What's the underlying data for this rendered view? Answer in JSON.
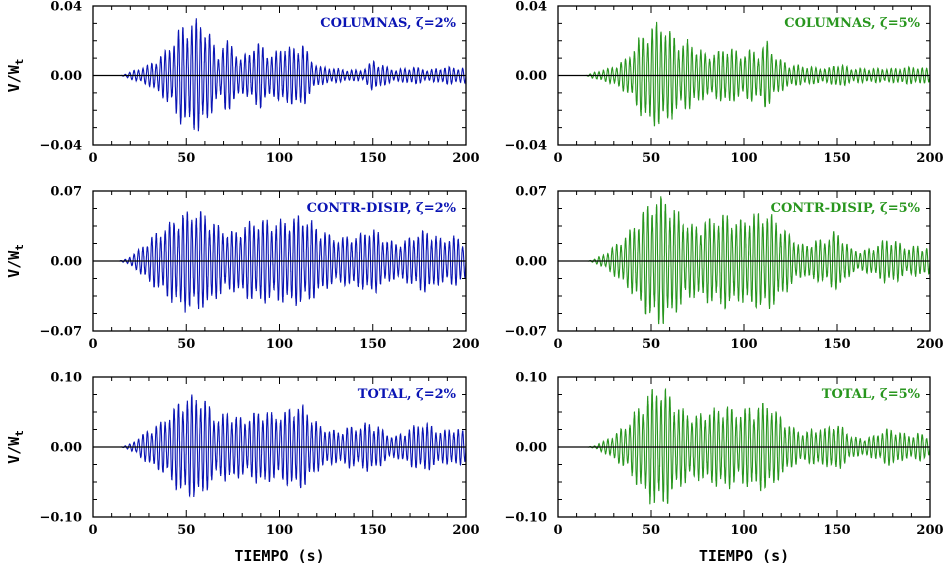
{
  "chart_data": [
    {
      "type": "line",
      "panel": "row1-left",
      "ylabel": "V/W",
      "ylabel_sub": "t",
      "xlabel": "",
      "legend": "COLUMNAS, ζ=2%",
      "color": "#0a14b4",
      "xlim": [
        0,
        200
      ],
      "ylim": [
        -0.04,
        0.04
      ],
      "xticks": [
        0,
        50,
        100,
        150,
        200
      ],
      "yticks": [
        -0.04,
        0.0,
        0.04
      ],
      "ytick_labels": [
        "−0.04",
        "0.00",
        "0.04"
      ],
      "peak": 0.032,
      "freq": 0.42,
      "envelope": [
        [
          0,
          0
        ],
        [
          15,
          0
        ],
        [
          20,
          0.002
        ],
        [
          30,
          0.006
        ],
        [
          38,
          0.013
        ],
        [
          42,
          0.018
        ],
        [
          47,
          0.028
        ],
        [
          52,
          0.03
        ],
        [
          57,
          0.032
        ],
        [
          62,
          0.026
        ],
        [
          67,
          0.012
        ],
        [
          71,
          0.02
        ],
        [
          75,
          0.019
        ],
        [
          79,
          0.009
        ],
        [
          84,
          0.015
        ],
        [
          90,
          0.019
        ],
        [
          96,
          0.011
        ],
        [
          101,
          0.017
        ],
        [
          108,
          0.016
        ],
        [
          112,
          0.02
        ],
        [
          117,
          0.009
        ],
        [
          122,
          0.005
        ],
        [
          130,
          0.004
        ],
        [
          138,
          0.003
        ],
        [
          145,
          0.003
        ],
        [
          150,
          0.009
        ],
        [
          155,
          0.006
        ],
        [
          162,
          0.003
        ],
        [
          172,
          0.005
        ],
        [
          180,
          0.003
        ],
        [
          190,
          0.005
        ],
        [
          200,
          0.004
        ]
      ]
    },
    {
      "type": "line",
      "panel": "row1-right",
      "ylabel": "",
      "xlabel": "",
      "legend": "COLUMNAS, ζ=5%",
      "color": "#28961e",
      "xlim": [
        0,
        200
      ],
      "ylim": [
        -0.04,
        0.04
      ],
      "xticks": [
        0,
        50,
        100,
        150,
        200
      ],
      "yticks": [
        -0.04,
        0.0,
        0.04
      ],
      "ytick_labels": [
        "−0.04",
        "0.00",
        "0.04"
      ],
      "peak": 0.03,
      "freq": 0.42,
      "envelope": [
        [
          0,
          0
        ],
        [
          15,
          0
        ],
        [
          20,
          0.002
        ],
        [
          30,
          0.005
        ],
        [
          38,
          0.011
        ],
        [
          44,
          0.022
        ],
        [
          50,
          0.029
        ],
        [
          55,
          0.03
        ],
        [
          60,
          0.026
        ],
        [
          66,
          0.018
        ],
        [
          70,
          0.02
        ],
        [
          75,
          0.016
        ],
        [
          80,
          0.012
        ],
        [
          86,
          0.014
        ],
        [
          92,
          0.017
        ],
        [
          98,
          0.012
        ],
        [
          104,
          0.015
        ],
        [
          108,
          0.013
        ],
        [
          112,
          0.02
        ],
        [
          118,
          0.01
        ],
        [
          125,
          0.006
        ],
        [
          135,
          0.005
        ],
        [
          145,
          0.004
        ],
        [
          150,
          0.007
        ],
        [
          158,
          0.004
        ],
        [
          168,
          0.004
        ],
        [
          180,
          0.004
        ],
        [
          190,
          0.005
        ],
        [
          200,
          0.004
        ]
      ]
    },
    {
      "type": "line",
      "panel": "row2-left",
      "ylabel": "V/W",
      "ylabel_sub": "t",
      "xlabel": "",
      "legend": "CONTR-DISIP, ζ=2%",
      "color": "#0a14b4",
      "xlim": [
        0,
        200
      ],
      "ylim": [
        -0.07,
        0.07
      ],
      "xticks": [
        0,
        50,
        100,
        150,
        200
      ],
      "yticks": [
        -0.07,
        0.0,
        0.07
      ],
      "ytick_labels": [
        "−0.07",
        "0.00",
        "0.07"
      ],
      "peak": 0.05,
      "freq": 0.42,
      "envelope": [
        [
          0,
          0
        ],
        [
          14,
          0
        ],
        [
          18,
          0.002
        ],
        [
          24,
          0.01
        ],
        [
          30,
          0.022
        ],
        [
          36,
          0.03
        ],
        [
          42,
          0.04
        ],
        [
          47,
          0.048
        ],
        [
          52,
          0.05
        ],
        [
          57,
          0.05
        ],
        [
          62,
          0.045
        ],
        [
          67,
          0.035
        ],
        [
          72,
          0.03
        ],
        [
          77,
          0.03
        ],
        [
          82,
          0.037
        ],
        [
          87,
          0.04
        ],
        [
          92,
          0.042
        ],
        [
          97,
          0.038
        ],
        [
          102,
          0.042
        ],
        [
          107,
          0.043
        ],
        [
          112,
          0.045
        ],
        [
          117,
          0.04
        ],
        [
          122,
          0.032
        ],
        [
          127,
          0.026
        ],
        [
          132,
          0.022
        ],
        [
          137,
          0.026
        ],
        [
          142,
          0.025
        ],
        [
          147,
          0.032
        ],
        [
          152,
          0.03
        ],
        [
          157,
          0.022
        ],
        [
          162,
          0.018
        ],
        [
          167,
          0.02
        ],
        [
          172,
          0.026
        ],
        [
          177,
          0.031
        ],
        [
          182,
          0.028
        ],
        [
          187,
          0.022
        ],
        [
          193,
          0.025
        ],
        [
          200,
          0.02
        ]
      ]
    },
    {
      "type": "line",
      "panel": "row2-right",
      "ylabel": "",
      "xlabel": "",
      "legend": "CONTR-DISIP, ζ=5%",
      "color": "#28961e",
      "xlim": [
        0,
        200
      ],
      "ylim": [
        -0.07,
        0.07
      ],
      "xticks": [
        0,
        50,
        100,
        150,
        200
      ],
      "yticks": [
        -0.07,
        0.0,
        0.07
      ],
      "ytick_labels": [
        "−0.07",
        "0.00",
        "0.07"
      ],
      "peak": 0.065,
      "freq": 0.42,
      "envelope": [
        [
          0,
          0
        ],
        [
          16,
          0
        ],
        [
          20,
          0.002
        ],
        [
          26,
          0.008
        ],
        [
          32,
          0.018
        ],
        [
          38,
          0.028
        ],
        [
          44,
          0.045
        ],
        [
          49,
          0.058
        ],
        [
          54,
          0.065
        ],
        [
          59,
          0.06
        ],
        [
          64,
          0.05
        ],
        [
          69,
          0.04
        ],
        [
          74,
          0.035
        ],
        [
          79,
          0.04
        ],
        [
          85,
          0.044
        ],
        [
          91,
          0.048
        ],
        [
          97,
          0.04
        ],
        [
          103,
          0.046
        ],
        [
          108,
          0.048
        ],
        [
          113,
          0.05
        ],
        [
          118,
          0.04
        ],
        [
          123,
          0.03
        ],
        [
          128,
          0.02
        ],
        [
          133,
          0.015
        ],
        [
          138,
          0.022
        ],
        [
          143,
          0.02
        ],
        [
          148,
          0.03
        ],
        [
          153,
          0.024
        ],
        [
          158,
          0.012
        ],
        [
          163,
          0.01
        ],
        [
          170,
          0.014
        ],
        [
          176,
          0.022
        ],
        [
          182,
          0.02
        ],
        [
          188,
          0.013
        ],
        [
          194,
          0.016
        ],
        [
          200,
          0.012
        ]
      ]
    },
    {
      "type": "line",
      "panel": "row3-left",
      "ylabel": "V/W",
      "ylabel_sub": "t",
      "xlabel": "TIEMPO (s)",
      "legend": "TOTAL, ζ=2%",
      "color": "#0a14b4",
      "xlim": [
        0,
        200
      ],
      "ylim": [
        -0.1,
        0.1
      ],
      "xticks": [
        0,
        50,
        100,
        150,
        200
      ],
      "yticks": [
        -0.1,
        0.0,
        0.1
      ],
      "ytick_labels": [
        "−0.10",
        "0.00",
        "0.10"
      ],
      "peak": 0.075,
      "freq": 0.42,
      "envelope": [
        [
          0,
          0
        ],
        [
          15,
          0
        ],
        [
          19,
          0.003
        ],
        [
          24,
          0.012
        ],
        [
          30,
          0.025
        ],
        [
          36,
          0.035
        ],
        [
          42,
          0.05
        ],
        [
          47,
          0.068
        ],
        [
          52,
          0.072
        ],
        [
          57,
          0.075
        ],
        [
          62,
          0.06
        ],
        [
          67,
          0.04
        ],
        [
          72,
          0.05
        ],
        [
          77,
          0.045
        ],
        [
          82,
          0.04
        ],
        [
          87,
          0.05
        ],
        [
          92,
          0.055
        ],
        [
          97,
          0.045
        ],
        [
          102,
          0.05
        ],
        [
          107,
          0.058
        ],
        [
          112,
          0.06
        ],
        [
          117,
          0.045
        ],
        [
          122,
          0.03
        ],
        [
          127,
          0.025
        ],
        [
          132,
          0.022
        ],
        [
          137,
          0.03
        ],
        [
          142,
          0.028
        ],
        [
          147,
          0.035
        ],
        [
          152,
          0.032
        ],
        [
          157,
          0.02
        ],
        [
          162,
          0.015
        ],
        [
          167,
          0.022
        ],
        [
          172,
          0.03
        ],
        [
          177,
          0.035
        ],
        [
          182,
          0.03
        ],
        [
          187,
          0.022
        ],
        [
          193,
          0.028
        ],
        [
          200,
          0.022
        ]
      ]
    },
    {
      "type": "line",
      "panel": "row3-right",
      "ylabel": "",
      "xlabel": "TIEMPO (s)",
      "legend": "TOTAL, ζ=5%",
      "color": "#28961e",
      "xlim": [
        0,
        200
      ],
      "ylim": [
        -0.1,
        0.1
      ],
      "xticks": [
        0,
        50,
        100,
        150,
        200
      ],
      "yticks": [
        -0.1,
        0.0,
        0.1
      ],
      "ytick_labels": [
        "−0.10",
        "0.00",
        "0.10"
      ],
      "peak": 0.088,
      "freq": 0.42,
      "envelope": [
        [
          0,
          0
        ],
        [
          16,
          0
        ],
        [
          20,
          0.002
        ],
        [
          26,
          0.01
        ],
        [
          32,
          0.022
        ],
        [
          38,
          0.035
        ],
        [
          44,
          0.06
        ],
        [
          49,
          0.078
        ],
        [
          54,
          0.088
        ],
        [
          59,
          0.08
        ],
        [
          64,
          0.06
        ],
        [
          69,
          0.05
        ],
        [
          74,
          0.045
        ],
        [
          79,
          0.05
        ],
        [
          85,
          0.055
        ],
        [
          91,
          0.06
        ],
        [
          97,
          0.05
        ],
        [
          103,
          0.058
        ],
        [
          108,
          0.06
        ],
        [
          113,
          0.065
        ],
        [
          118,
          0.048
        ],
        [
          123,
          0.035
        ],
        [
          128,
          0.025
        ],
        [
          133,
          0.02
        ],
        [
          138,
          0.028
        ],
        [
          143,
          0.025
        ],
        [
          148,
          0.035
        ],
        [
          153,
          0.028
        ],
        [
          158,
          0.015
        ],
        [
          163,
          0.012
        ],
        [
          170,
          0.016
        ],
        [
          176,
          0.026
        ],
        [
          182,
          0.024
        ],
        [
          188,
          0.016
        ],
        [
          194,
          0.02
        ],
        [
          200,
          0.015
        ]
      ]
    }
  ]
}
